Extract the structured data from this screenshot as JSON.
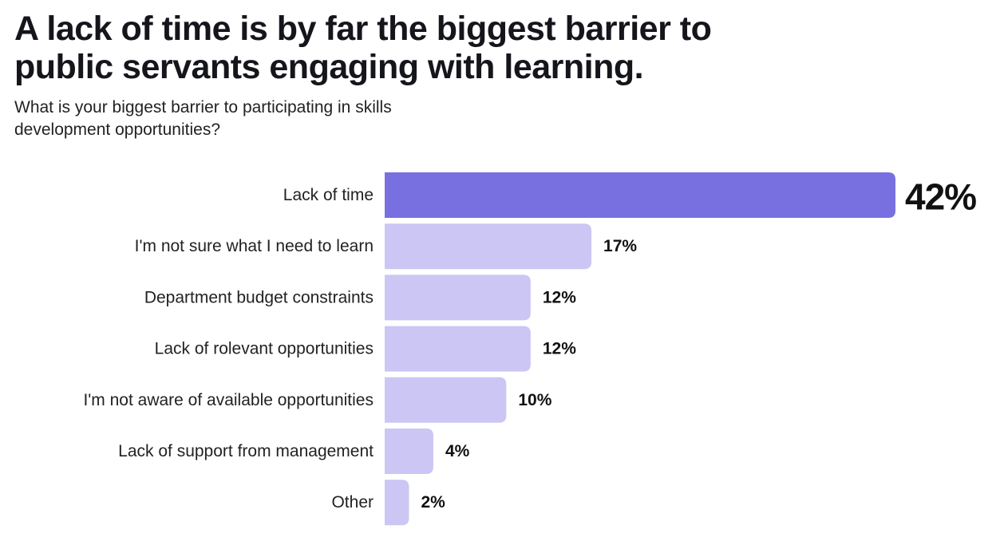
{
  "chart_data": {
    "type": "bar",
    "orientation": "horizontal",
    "title": "A lack of time is by far the biggest barrier to public servants engaging with learning.",
    "subtitle": "What is your biggest barrier to participating in skills development opportunities?",
    "categories": [
      "Lack of time",
      "I'm not sure what I need to learn",
      "Department budget constraints",
      "Lack of rolevant opportunities",
      "I'm not aware of available opportunities",
      "Lack of support from management",
      "Other"
    ],
    "values": [
      42,
      17,
      12,
      12,
      10,
      4,
      2
    ],
    "value_labels": [
      "42%",
      "17%",
      "12%",
      "12%",
      "10%",
      "4%",
      "2%"
    ],
    "unit": "%",
    "grid": false,
    "legend": "none",
    "highlight_index": 0,
    "colors": {
      "highlight": "#7870e0",
      "default": "#cbc6f3"
    }
  }
}
